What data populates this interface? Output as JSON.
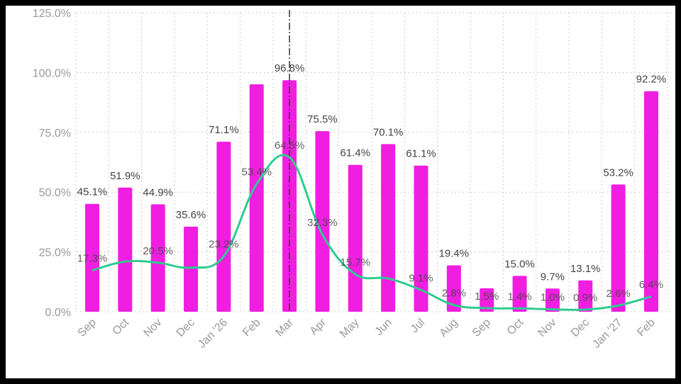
{
  "chart_data": {
    "type": "bar+line",
    "categories": [
      "Sep",
      "Oct",
      "Nov",
      "Dec",
      "Jan '26",
      "Feb",
      "Mar",
      "Apr",
      "May",
      "Jun",
      "Jul",
      "Aug",
      "Sep",
      "Oct",
      "Nov",
      "Dec",
      "Jan '27",
      "Feb"
    ],
    "series": [
      {
        "type": "bar",
        "color": "#f01ee0",
        "values": [
          45.1,
          51.9,
          44.9,
          35.6,
          71.1,
          95.1,
          96.8,
          75.5,
          61.4,
          70.1,
          61.1,
          19.4,
          9.8,
          15.0,
          9.7,
          13.1,
          53.2,
          92.2
        ],
        "labels": [
          "45.1%",
          "51.9%",
          "44.9%",
          "35.6%",
          "71.1%",
          null,
          "96.8%",
          "75.5%",
          "61.4%",
          "70.1%",
          "61.1%",
          "19.4%",
          null,
          "15.0%",
          "9.7%",
          "13.1%",
          "53.2%",
          "92.2%"
        ]
      },
      {
        "type": "line",
        "color": "#2ecc8f",
        "smooth": true,
        "values": [
          17.3,
          21.0,
          20.5,
          18.4,
          23.2,
          53.4,
          64.5,
          32.3,
          15.7,
          13.9,
          9.1,
          2.8,
          1.5,
          1.4,
          1.0,
          0.9,
          2.6,
          6.4
        ],
        "labels": [
          "17.3%",
          null,
          "20.5%",
          null,
          "23.2%",
          "53.4%",
          "64.5%",
          "32.3%",
          "15.7%",
          null,
          "9.1%",
          "2.8%",
          "1.5%",
          "1.4%",
          "1.0%",
          "0.9%",
          "2.6%",
          "6.4%"
        ]
      }
    ],
    "yticks": [
      "0.0%",
      "25.0%",
      "50.0%",
      "75.0%",
      "100.0%",
      "125.0%"
    ],
    "ylim": [
      0,
      125
    ],
    "grid": "dotted",
    "marker_line_category": "Mar",
    "legend": "none"
  }
}
